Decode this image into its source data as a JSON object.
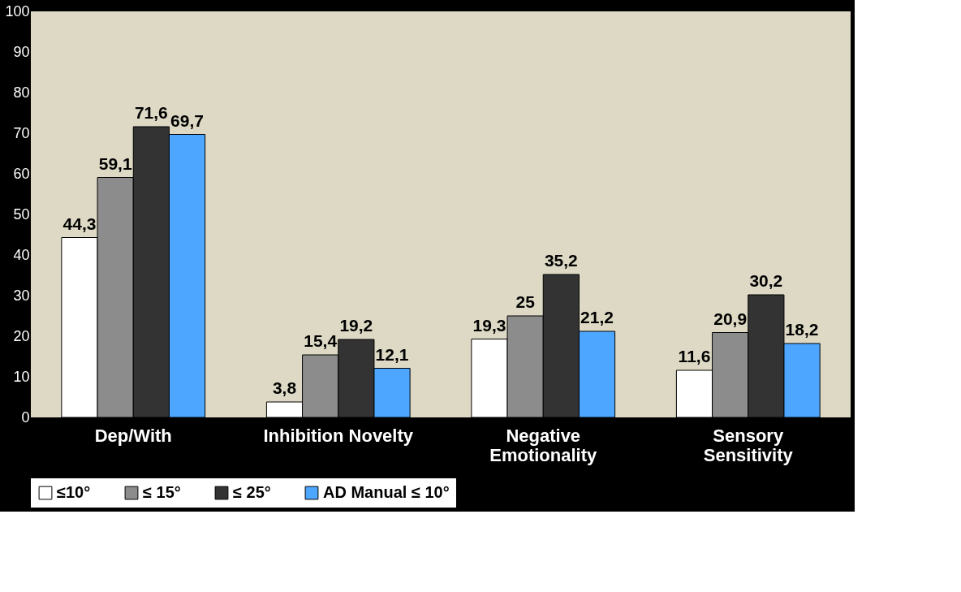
{
  "chart_data": {
    "type": "bar",
    "categories": [
      "Dep/With",
      "Inhibition Novelty",
      "Negative Emotionality",
      "Sensory Sensitivity"
    ],
    "series": [
      {
        "name": "≤10°",
        "color": "#ffffff",
        "values": [
          44.3,
          3.8,
          19.3,
          11.6
        ],
        "value_labels": [
          "44,3",
          "3,8",
          "19,3",
          "11,6"
        ]
      },
      {
        "name": "≤ 15°",
        "color": "#8c8c8c",
        "values": [
          59.1,
          15.4,
          25,
          20.9
        ],
        "value_labels": [
          "59,1",
          "15,4",
          "25",
          "20,9"
        ]
      },
      {
        "name": "≤ 25°",
        "color": "#333333",
        "values": [
          71.6,
          19.2,
          35.2,
          30.2
        ],
        "value_labels": [
          "71,6",
          "19,2",
          "35,2",
          "30,2"
        ]
      },
      {
        "name": "AD Manual ≤ 10°",
        "color": "#4da6ff",
        "values": [
          69.7,
          12.1,
          21.2,
          18.2
        ],
        "value_labels": [
          "69,7",
          "12,1",
          "21,2",
          "18,2"
        ]
      }
    ],
    "ylim": [
      0,
      100
    ],
    "yticks": [
      0,
      10,
      20,
      30,
      40,
      50,
      60,
      70,
      80,
      90,
      100
    ],
    "grid": false,
    "legend": "bottom"
  }
}
